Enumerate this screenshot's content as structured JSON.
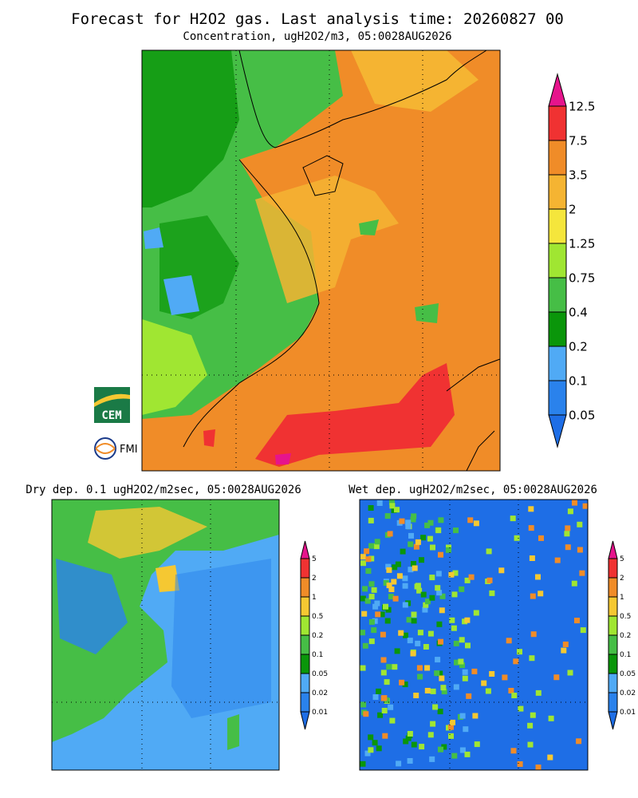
{
  "header": {
    "title": "Forecast for H2O2 gas. Last analysis time: 20260827 00"
  },
  "panels": [
    {
      "title": "Concentration, ugH2O2/m3, 05:0028AUG2026",
      "colorbar": {
        "labels": [
          "12.5",
          "7.5",
          "3.5",
          "2",
          "1.25",
          "0.75",
          "0.4",
          "0.2",
          "0.1",
          "0.05"
        ],
        "colors": [
          "#e6148c",
          "#f03232",
          "#f08c28",
          "#f5b432",
          "#f5e63c",
          "#a0e632",
          "#46be46",
          "#0a960a",
          "#50aaf5",
          "#2a82ec",
          "#1e6ee6"
        ]
      }
    },
    {
      "title": "Dry dep. 0.1 ugH2O2/m2sec, 05:0028AUG2026",
      "colorbar": {
        "labels": [
          "5",
          "2",
          "1",
          "0.5",
          "0.2",
          "0.1",
          "0.05",
          "0.02",
          "0.01"
        ],
        "colors": [
          "#e6148c",
          "#f03232",
          "#f08c28",
          "#f5c832",
          "#a0e632",
          "#46be46",
          "#0a960a",
          "#50aaf5",
          "#2a82ec",
          "#1e6ee6"
        ]
      }
    },
    {
      "title": "Wet dep. ugH2O2/m2sec, 05:0028AUG2026",
      "colorbar": {
        "labels": [
          "5",
          "2",
          "1",
          "0.5",
          "0.2",
          "0.1",
          "0.05",
          "0.02",
          "0.01"
        ],
        "colors": [
          "#e6148c",
          "#f03232",
          "#f08c28",
          "#f5c832",
          "#a0e632",
          "#46be46",
          "#0a960a",
          "#50aaf5",
          "#2a82ec",
          "#1e6ee6"
        ]
      }
    }
  ],
  "logos": {
    "cem": "CEM",
    "fmi": "FMI"
  }
}
